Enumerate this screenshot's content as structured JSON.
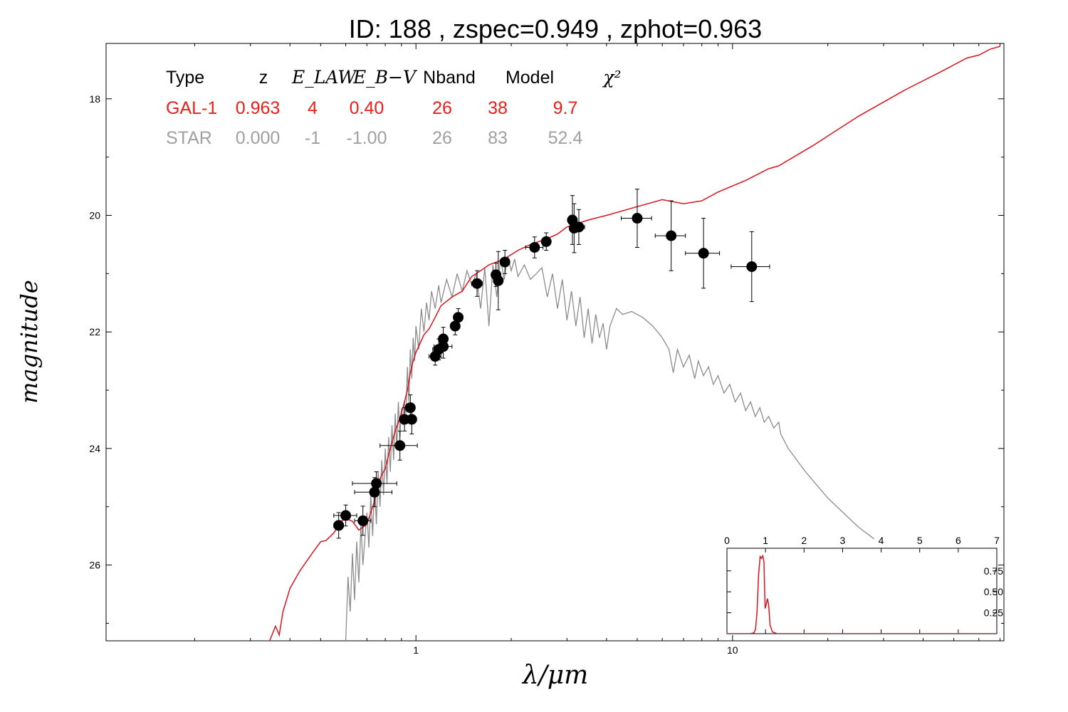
{
  "chart_data": {
    "type": "scatter",
    "title": "ID:  188   , zspec=0.949 , zphot=0.963",
    "xlabel": "λ/μm",
    "ylabel": "magnitude",
    "x_scale": "log",
    "xlim": [
      0.105,
      72
    ],
    "ylim": [
      27.3,
      17.05
    ],
    "y_inverted": true,
    "x_ticks": [
      1,
      10
    ],
    "x_tick_labels": [
      "1",
      "10"
    ],
    "y_ticks": [
      18,
      20,
      22,
      24,
      26
    ],
    "y_tick_labels": [
      "18",
      "20",
      "22",
      "24",
      "26"
    ],
    "legend_table": {
      "headers": [
        "Type",
        "z",
        "E_LAW",
        "E_B−V",
        "Nband",
        "Model",
        "χ²"
      ],
      "rows": [
        {
          "values": [
            "GAL-1",
            "0.963",
            "4",
            "0.40",
            "26",
            "38",
            "9.7"
          ],
          "color": "#e8201a"
        },
        {
          "values": [
            "STAR",
            "0.000",
            "-1",
            "-1.00",
            "26",
            "83",
            "52.4"
          ],
          "color": "#a0a0a0"
        }
      ]
    },
    "series": [
      {
        "name": "GAL-1",
        "kind": "line",
        "color": "#d8141e",
        "points": [
          [
            0.345,
            27.3
          ],
          [
            0.36,
            27.05
          ],
          [
            0.37,
            27.2
          ],
          [
            0.38,
            26.8
          ],
          [
            0.4,
            26.4
          ],
          [
            0.43,
            26.1
          ],
          [
            0.47,
            25.8
          ],
          [
            0.5,
            25.6
          ],
          [
            0.52,
            25.58
          ],
          [
            0.55,
            25.45
          ],
          [
            0.58,
            25.25
          ],
          [
            0.6,
            25.2
          ],
          [
            0.63,
            25.25
          ],
          [
            0.66,
            25.4
          ],
          [
            0.7,
            25.3
          ],
          [
            0.72,
            25.1
          ],
          [
            0.74,
            24.9
          ],
          [
            0.76,
            24.6
          ],
          [
            0.78,
            24.45
          ],
          [
            0.8,
            24.35
          ],
          [
            0.82,
            24.1
          ],
          [
            0.84,
            23.9
          ],
          [
            0.86,
            23.7
          ],
          [
            0.88,
            23.55
          ],
          [
            0.91,
            23.3
          ],
          [
            0.94,
            23.0
          ],
          [
            0.96,
            22.7
          ],
          [
            0.98,
            22.5
          ],
          [
            1.0,
            22.35
          ],
          [
            1.03,
            22.2
          ],
          [
            1.06,
            22.05
          ],
          [
            1.1,
            21.95
          ],
          [
            1.15,
            21.75
          ],
          [
            1.2,
            21.55
          ],
          [
            1.3,
            21.4
          ],
          [
            1.4,
            21.3
          ],
          [
            1.5,
            21.05
          ],
          [
            1.6,
            20.95
          ],
          [
            1.7,
            20.85
          ],
          [
            1.9,
            20.75
          ],
          [
            2.1,
            20.6
          ],
          [
            2.3,
            20.5
          ],
          [
            2.6,
            20.4
          ],
          [
            2.8,
            20.32
          ],
          [
            3.0,
            20.2
          ],
          [
            3.2,
            20.15
          ],
          [
            3.5,
            20.08
          ],
          [
            4.0,
            20.0
          ],
          [
            5.0,
            19.85
          ],
          [
            6.0,
            19.73
          ],
          [
            7.0,
            19.8
          ],
          [
            8.0,
            19.75
          ],
          [
            9.0,
            19.6
          ],
          [
            11.0,
            19.4
          ],
          [
            13.0,
            19.2
          ],
          [
            14.0,
            19.15
          ],
          [
            18.0,
            18.8
          ],
          [
            25.0,
            18.3
          ],
          [
            35.0,
            17.85
          ],
          [
            45.0,
            17.55
          ],
          [
            55.0,
            17.3
          ],
          [
            60.0,
            17.25
          ],
          [
            65.0,
            17.15
          ],
          [
            70.0,
            17.1
          ]
        ]
      },
      {
        "name": "STAR",
        "kind": "line",
        "color": "#8c8c8c",
        "points": [
          [
            0.6,
            27.3
          ],
          [
            0.61,
            26.2
          ],
          [
            0.62,
            26.8
          ],
          [
            0.63,
            25.8
          ],
          [
            0.64,
            26.6
          ],
          [
            0.65,
            25.6
          ],
          [
            0.66,
            26.3
          ],
          [
            0.67,
            25.3
          ],
          [
            0.68,
            26.0
          ],
          [
            0.7,
            25.1
          ],
          [
            0.71,
            25.7
          ],
          [
            0.72,
            24.8
          ],
          [
            0.73,
            25.5
          ],
          [
            0.74,
            24.6
          ],
          [
            0.75,
            25.3
          ],
          [
            0.76,
            24.4
          ],
          [
            0.77,
            25.0
          ],
          [
            0.78,
            24.2
          ],
          [
            0.79,
            24.8
          ],
          [
            0.8,
            24.0
          ],
          [
            0.81,
            24.6
          ],
          [
            0.82,
            23.8
          ],
          [
            0.83,
            24.4
          ],
          [
            0.84,
            23.6
          ],
          [
            0.85,
            24.2
          ],
          [
            0.86,
            23.4
          ],
          [
            0.87,
            24.0
          ],
          [
            0.88,
            23.2
          ],
          [
            0.89,
            23.8
          ],
          [
            0.9,
            23.3
          ],
          [
            0.91,
            23.6
          ],
          [
            0.92,
            23.2
          ],
          [
            0.93,
            23.4
          ],
          [
            0.94,
            22.6
          ],
          [
            0.95,
            23.2
          ],
          [
            0.96,
            22.3
          ],
          [
            0.97,
            22.8
          ],
          [
            0.98,
            22.1
          ],
          [
            0.99,
            22.5
          ],
          [
            1.0,
            21.9
          ],
          [
            1.02,
            22.3
          ],
          [
            1.04,
            21.6
          ],
          [
            1.06,
            22.0
          ],
          [
            1.08,
            21.5
          ],
          [
            1.1,
            21.8
          ],
          [
            1.12,
            21.3
          ],
          [
            1.15,
            21.6
          ],
          [
            1.18,
            21.2
          ],
          [
            1.2,
            21.5
          ],
          [
            1.25,
            21.1
          ],
          [
            1.3,
            21.4
          ],
          [
            1.35,
            21.0
          ],
          [
            1.4,
            21.3
          ],
          [
            1.45,
            20.95
          ],
          [
            1.5,
            21.2
          ],
          [
            1.55,
            21.0
          ],
          [
            1.6,
            21.6
          ],
          [
            1.65,
            20.9
          ],
          [
            1.7,
            21.9
          ],
          [
            1.75,
            20.85
          ],
          [
            1.8,
            21.4
          ],
          [
            1.85,
            20.75
          ],
          [
            1.9,
            21.1
          ],
          [
            1.95,
            20.7
          ],
          [
            2.0,
            20.95
          ],
          [
            2.05,
            20.75
          ],
          [
            2.1,
            21.05
          ],
          [
            2.2,
            20.85
          ],
          [
            2.3,
            21.1
          ],
          [
            2.4,
            21.0
          ],
          [
            2.5,
            20.9
          ],
          [
            2.6,
            21.4
          ],
          [
            2.7,
            21.0
          ],
          [
            2.8,
            21.6
          ],
          [
            2.9,
            21.1
          ],
          [
            3.0,
            21.8
          ],
          [
            3.1,
            21.3
          ],
          [
            3.2,
            21.9
          ],
          [
            3.3,
            21.4
          ],
          [
            3.4,
            22.1
          ],
          [
            3.5,
            21.6
          ],
          [
            3.6,
            22.2
          ],
          [
            3.7,
            21.7
          ],
          [
            3.8,
            22.1
          ],
          [
            3.9,
            21.85
          ],
          [
            4.0,
            22.3
          ],
          [
            4.1,
            21.9
          ],
          [
            4.3,
            21.6
          ],
          [
            4.5,
            21.7
          ],
          [
            4.8,
            21.65
          ],
          [
            5.2,
            21.75
          ],
          [
            5.6,
            21.9
          ],
          [
            6.0,
            22.1
          ],
          [
            6.3,
            22.3
          ],
          [
            6.5,
            22.7
          ],
          [
            6.7,
            22.3
          ],
          [
            7.0,
            22.6
          ],
          [
            7.3,
            22.4
          ],
          [
            7.6,
            22.8
          ],
          [
            7.8,
            22.5
          ],
          [
            8.1,
            22.75
          ],
          [
            8.4,
            22.6
          ],
          [
            8.7,
            22.9
          ],
          [
            9.0,
            22.75
          ],
          [
            9.4,
            23.05
          ],
          [
            9.8,
            22.9
          ],
          [
            10.2,
            23.2
          ],
          [
            10.6,
            23.05
          ],
          [
            11.0,
            23.35
          ],
          [
            11.4,
            23.2
          ],
          [
            11.8,
            23.45
          ],
          [
            12.2,
            23.3
          ],
          [
            12.6,
            23.55
          ],
          [
            13.0,
            23.45
          ],
          [
            13.5,
            23.65
          ],
          [
            14.0,
            23.55
          ],
          [
            14.2,
            23.75
          ],
          [
            15.0,
            24.0
          ],
          [
            17.0,
            24.4
          ],
          [
            20.0,
            24.85
          ],
          [
            25.0,
            25.35
          ],
          [
            28.0,
            25.55
          ]
        ]
      },
      {
        "name": "observed",
        "kind": "points",
        "color": "#000000",
        "points": [
          {
            "x": 0.57,
            "y": 25.32,
            "xerr": 0.02,
            "yerr": 0.22
          },
          {
            "x": 0.6,
            "y": 25.15,
            "xerr": 0.05,
            "yerr": 0.18
          },
          {
            "x": 0.68,
            "y": 25.24,
            "xerr": 0.04,
            "yerr": 0.25
          },
          {
            "x": 0.75,
            "y": 24.6,
            "xerr": 0.12,
            "yerr": 0.2
          },
          {
            "x": 0.74,
            "y": 24.75,
            "xerr": 0.1,
            "yerr": 0.25
          },
          {
            "x": 0.89,
            "y": 23.95,
            "xerr": 0.12,
            "yerr": 0.25
          },
          {
            "x": 0.92,
            "y": 23.5,
            "xerr": 0.03,
            "yerr": 0.2
          },
          {
            "x": 0.96,
            "y": 23.3,
            "xerr": 0.03,
            "yerr": 0.22
          },
          {
            "x": 0.97,
            "y": 23.5,
            "xerr": 0.02,
            "yerr": 0.25
          },
          {
            "x": 1.15,
            "y": 22.42,
            "xerr": 0.05,
            "yerr": 0.15
          },
          {
            "x": 1.18,
            "y": 22.3,
            "xerr": 0.05,
            "yerr": 0.18
          },
          {
            "x": 1.22,
            "y": 22.25,
            "xerr": 0.08,
            "yerr": 0.2
          },
          {
            "x": 1.22,
            "y": 22.12,
            "xerr": 0.03,
            "yerr": 0.2
          },
          {
            "x": 1.33,
            "y": 21.9,
            "xerr": 0.03,
            "yerr": 0.15
          },
          {
            "x": 1.36,
            "y": 21.75,
            "xerr": 0.04,
            "yerr": 0.15
          },
          {
            "x": 1.56,
            "y": 21.17,
            "xerr": 0.06,
            "yerr": 0.22
          },
          {
            "x": 1.79,
            "y": 21.02,
            "xerr": 0.04,
            "yerr": 0.2
          },
          {
            "x": 1.82,
            "y": 21.12,
            "xerr": 0.05,
            "yerr": 0.5
          },
          {
            "x": 1.91,
            "y": 20.8,
            "xerr": 0.04,
            "yerr": 0.2
          },
          {
            "x": 2.37,
            "y": 20.55,
            "xerr": 0.15,
            "yerr": 0.18
          },
          {
            "x": 2.58,
            "y": 20.45,
            "xerr": 0.05,
            "yerr": 0.15
          },
          {
            "x": 3.12,
            "y": 20.08,
            "xerr": 0.05,
            "yerr": 0.42
          },
          {
            "x": 3.16,
            "y": 20.22,
            "xerr": 0.05,
            "yerr": 0.42
          },
          {
            "x": 3.27,
            "y": 20.2,
            "xerr": 0.14,
            "yerr": 0.3
          },
          {
            "x": 5.0,
            "y": 20.05,
            "xerr": 0.55,
            "yerr": 0.5
          },
          {
            "x": 6.4,
            "y": 20.35,
            "xerr": 0.7,
            "yerr": 0.6
          },
          {
            "x": 8.1,
            "y": 20.65,
            "xerr": 1.0,
            "yerr": 0.6
          },
          {
            "x": 11.5,
            "y": 20.88,
            "xerr": 1.6,
            "yerr": 0.6
          }
        ]
      }
    ],
    "inset": {
      "type": "line",
      "xlim": [
        0,
        7
      ],
      "ylim": [
        0,
        1.02
      ],
      "x_ticks": [
        0,
        1,
        2,
        3,
        4,
        5,
        6,
        7
      ],
      "x_tick_labels": [
        "0",
        "1",
        "2",
        "3",
        "4",
        "5",
        "6",
        "7"
      ],
      "y_ticks": [
        0.25,
        0.5,
        0.75
      ],
      "y_tick_labels": [
        "0.25",
        "0.50",
        "0.75"
      ],
      "color": "#d8141e",
      "points": [
        [
          0,
          0
        ],
        [
          0.6,
          0
        ],
        [
          0.7,
          0.01
        ],
        [
          0.74,
          0.05
        ],
        [
          0.78,
          0.25
        ],
        [
          0.82,
          0.7
        ],
        [
          0.86,
          0.92
        ],
        [
          0.89,
          0.9
        ],
        [
          0.93,
          0.93
        ],
        [
          0.96,
          0.85
        ],
        [
          0.99,
          0.3
        ],
        [
          1.02,
          0.35
        ],
        [
          1.05,
          0.42
        ],
        [
          1.08,
          0.35
        ],
        [
          1.12,
          0.1
        ],
        [
          1.18,
          0.02
        ],
        [
          1.3,
          0
        ],
        [
          7,
          0
        ]
      ]
    }
  }
}
